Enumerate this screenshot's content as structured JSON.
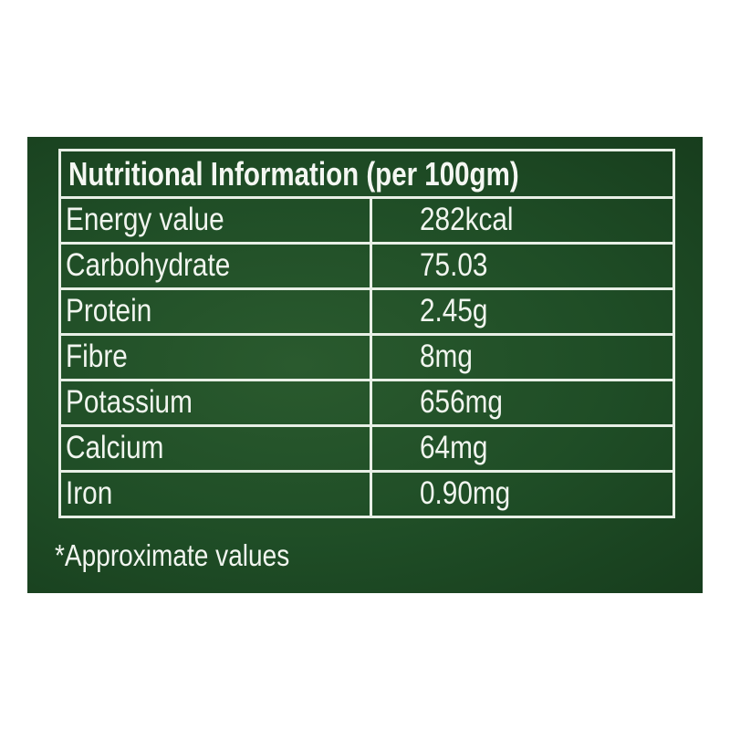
{
  "title": "Nutritional Information (per 100gm)",
  "rows": [
    {
      "nutrient": "Energy value",
      "value": "282kcal"
    },
    {
      "nutrient": "Carbohydrate",
      "value": "75.03"
    },
    {
      "nutrient": "Protein",
      "value": "2.45g"
    },
    {
      "nutrient": "Fibre",
      "value": "8mg"
    },
    {
      "nutrient": "Potassium",
      "value": "656mg"
    },
    {
      "nutrient": "Calcium",
      "value": "64mg"
    },
    {
      "nutrient": "Iron",
      "value": "0.90mg"
    }
  ],
  "footnote": "*Approximate values",
  "colors": {
    "panel": "#1f4d26",
    "text": "#f1f5ef"
  }
}
